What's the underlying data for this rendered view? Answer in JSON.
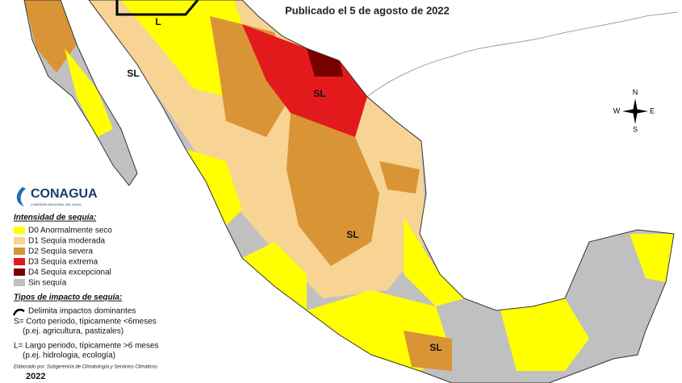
{
  "header": {
    "subtitle": "Publicado el 5 de agosto de 2022"
  },
  "map_labels": {
    "top_box": "L",
    "sl": [
      "SL",
      "SL",
      "SL",
      "SL"
    ]
  },
  "compass": {
    "n": "N",
    "s": "S",
    "e": "E",
    "w": "W"
  },
  "logo": {
    "name": "CONAGUA",
    "tagline": "COMISIÓN NACIONAL DEL AGUA"
  },
  "legend": {
    "intensity_title": "Intensidad de sequía:",
    "items": [
      "D0 Anormalmente seco",
      "D1 Sequía moderada",
      "D2 Sequía severa",
      "D3 Sequía extrema",
      "D4 Sequía excepcional",
      "Sin sequía"
    ],
    "impact_title": "Tipos de impacto de sequía:",
    "impact_line": "Delimita impactos dominantes",
    "impact_s": "S= Corto periodo, típicamente <6meses",
    "impact_s_example": "(p.ej. agricultura, pastizales)",
    "impact_l": "L= Largo periodo, típicamente >6 meses",
    "impact_l_example": "(p.ej. hidrologia, ecología)"
  },
  "footer": {
    "credit": "Elaborado por: Subgerencia de Climatología y Servicios Climáticos",
    "year": "2022"
  }
}
